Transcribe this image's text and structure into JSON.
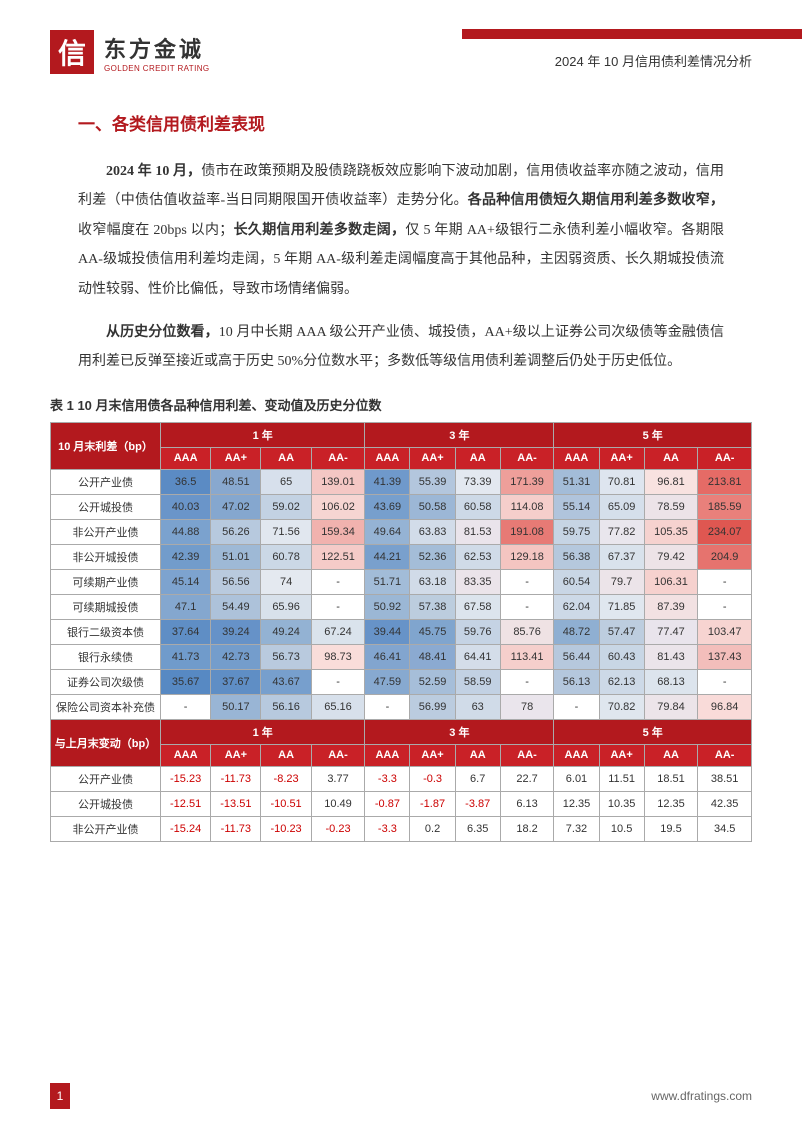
{
  "header": {
    "logo_char": "信",
    "logo_cn": "东方金诚",
    "logo_en": "GOLDEN CREDIT RATING",
    "doc_title": "2024 年 10 月信用债利差情况分析"
  },
  "section_title": "一、各类信用债利差表现",
  "p1_a": "2024 年 10 月，",
  "p1_b": "债市在政策预期及股债跷跷板效应影响下波动加剧，信用债收益率亦随之波动，信用利差（中债估值收益率-当日同期限国开债收益率）走势分化。",
  "p1_c": "各品种信用债短久期信用利差多数收窄，",
  "p1_d": "收窄幅度在 20bps 以内；",
  "p1_e": "长久期信用利差多数走阔，",
  "p1_f": "仅 5 年期 AA+级银行二永债利差小幅收窄。各期限 AA-级城投债信用利差均走阔，5 年期 AA-级利差走阔幅度高于其他品种，主因弱资质、长久期城投债流动性较弱、性价比偏低，导致市场情绪偏弱。",
  "p2_a": "从历史分位数看，",
  "p2_b": "10 月中长期 AAA 级公开产业债、城投债，AA+级以上证券公司次级债等金融债信用利差已反弹至接近或高于历史 50%分位数水平；多数低等级信用债利差调整后仍处于历史低位。",
  "table1": {
    "caption": "表 1 10 月末信用债各品种信用利差、变动值及历史分位数",
    "corner1": "10 月末利差（bp）",
    "corner2": "与上月末变动（bp）",
    "years": [
      "1 年",
      "3 年",
      "5 年"
    ],
    "ratings": [
      "AAA",
      "AA+",
      "AA",
      "AA-"
    ],
    "rowsA": [
      {
        "label": "公开产业债",
        "cells": [
          {
            "v": "36.5",
            "c": "#5b8bc4"
          },
          {
            "v": "48.51",
            "c": "#88a8cf"
          },
          {
            "v": "65",
            "c": "#d7e0ec"
          },
          {
            "v": "139.01",
            "c": "#f4c7c4"
          },
          {
            "v": "41.39",
            "c": "#6f99cb"
          },
          {
            "v": "55.39",
            "c": "#b3c6dd"
          },
          {
            "v": "73.39",
            "c": "#e3e8f0"
          },
          {
            "v": "171.39",
            "c": "#ee9f9a"
          },
          {
            "v": "51.31",
            "c": "#a3bcd8"
          },
          {
            "v": "70.81",
            "c": "#dee5ef"
          },
          {
            "v": "96.81",
            "c": "#f8e2e0"
          },
          {
            "v": "213.81",
            "c": "#e56b66"
          }
        ]
      },
      {
        "label": "公开城投债",
        "cells": [
          {
            "v": "40.03",
            "c": "#6a95c9"
          },
          {
            "v": "47.02",
            "c": "#85a7cf"
          },
          {
            "v": "59.02",
            "c": "#c3d2e3"
          },
          {
            "v": "106.02",
            "c": "#f6d5d2"
          },
          {
            "v": "43.69",
            "c": "#779fcd"
          },
          {
            "v": "50.58",
            "c": "#9cb7d6"
          },
          {
            "v": "60.58",
            "c": "#cdd9e7"
          },
          {
            "v": "114.08",
            "c": "#f5cecb"
          },
          {
            "v": "55.14",
            "c": "#b0c4dc"
          },
          {
            "v": "65.09",
            "c": "#d5dfeb"
          },
          {
            "v": "78.59",
            "c": "#ece3e8"
          },
          {
            "v": "185.59",
            "c": "#e9807b"
          }
        ]
      },
      {
        "label": "非公开产业债",
        "cells": [
          {
            "v": "44.88",
            "c": "#7ba2ce"
          },
          {
            "v": "56.26",
            "c": "#b7c9de"
          },
          {
            "v": "71.56",
            "c": "#e1e7ef"
          },
          {
            "v": "159.34",
            "c": "#f1b2ae"
          },
          {
            "v": "49.64",
            "c": "#95b3d4"
          },
          {
            "v": "63.83",
            "c": "#d2dce9"
          },
          {
            "v": "81.53",
            "c": "#eae4eb"
          },
          {
            "v": "191.08",
            "c": "#e77a75"
          },
          {
            "v": "59.75",
            "c": "#c6d4e4"
          },
          {
            "v": "77.82",
            "c": "#e9e6ed"
          },
          {
            "v": "105.35",
            "c": "#f6d2cf"
          },
          {
            "v": "234.07",
            "c": "#df5751"
          }
        ]
      },
      {
        "label": "非公开城投债",
        "cells": [
          {
            "v": "42.39",
            "c": "#729ccb"
          },
          {
            "v": "51.01",
            "c": "#9eb9d6"
          },
          {
            "v": "60.78",
            "c": "#cbd8e6"
          },
          {
            "v": "122.51",
            "c": "#f5cbc8"
          },
          {
            "v": "44.21",
            "c": "#79a0cd"
          },
          {
            "v": "52.36",
            "c": "#a4bdd8"
          },
          {
            "v": "62.53",
            "c": "#d0dbe8"
          },
          {
            "v": "129.18",
            "c": "#f4c5c1"
          },
          {
            "v": "56.38",
            "c": "#b5c8dd"
          },
          {
            "v": "67.37",
            "c": "#d9e2ec"
          },
          {
            "v": "79.42",
            "c": "#ede3e7"
          },
          {
            "v": "204.9",
            "c": "#e6736e"
          }
        ]
      },
      {
        "label": "可续期产业债",
        "cells": [
          {
            "v": "45.14",
            "c": "#7da3cf"
          },
          {
            "v": "56.56",
            "c": "#b9cade"
          },
          {
            "v": "74",
            "c": "#e4e9f0"
          },
          {
            "v": "-",
            "c": "#fff"
          },
          {
            "v": "51.71",
            "c": "#a2bcd8"
          },
          {
            "v": "63.18",
            "c": "#d1dbe8"
          },
          {
            "v": "83.35",
            "c": "#ebe4ea"
          },
          {
            "v": "-",
            "c": "#fff"
          },
          {
            "v": "60.54",
            "c": "#c9d6e5"
          },
          {
            "v": "79.7",
            "c": "#ece4e9"
          },
          {
            "v": "106.31",
            "c": "#f6d1ce"
          },
          {
            "v": "-",
            "c": "#fff"
          }
        ]
      },
      {
        "label": "可续期城投债",
        "cells": [
          {
            "v": "47.1",
            "c": "#84a7cf"
          },
          {
            "v": "54.49",
            "c": "#adc2da"
          },
          {
            "v": "65.96",
            "c": "#d8e1eb"
          },
          {
            "v": "-",
            "c": "#fff"
          },
          {
            "v": "50.92",
            "c": "#9bb7d5"
          },
          {
            "v": "57.38",
            "c": "#bccdde"
          },
          {
            "v": "67.58",
            "c": "#dce4ed"
          },
          {
            "v": "-",
            "c": "#fff"
          },
          {
            "v": "62.04",
            "c": "#cdd9e7"
          },
          {
            "v": "71.85",
            "c": "#e0e7ef"
          },
          {
            "v": "87.39",
            "c": "#f2e1e2"
          },
          {
            "v": "-",
            "c": "#fff"
          }
        ]
      },
      {
        "label": "银行二级资本债",
        "cells": [
          {
            "v": "37.64",
            "c": "#5f8ec5"
          },
          {
            "v": "39.24",
            "c": "#6692c8"
          },
          {
            "v": "49.24",
            "c": "#93b2d3"
          },
          {
            "v": "67.24",
            "c": "#dae3ec"
          },
          {
            "v": "39.44",
            "c": "#6793c8"
          },
          {
            "v": "45.75",
            "c": "#80a5ce"
          },
          {
            "v": "59.76",
            "c": "#c5d3e4"
          },
          {
            "v": "85.76",
            "c": "#efe2e4"
          },
          {
            "v": "48.72",
            "c": "#8fafd2"
          },
          {
            "v": "57.47",
            "c": "#bdcddf"
          },
          {
            "v": "77.47",
            "c": "#e9e4ec"
          },
          {
            "v": "103.47",
            "c": "#f7d4d1"
          }
        ]
      },
      {
        "label": "银行永续债",
        "cells": [
          {
            "v": "41.73",
            "c": "#709bcb"
          },
          {
            "v": "42.73",
            "c": "#749dcc"
          },
          {
            "v": "56.73",
            "c": "#b9cade"
          },
          {
            "v": "98.73",
            "c": "#f9ddda"
          },
          {
            "v": "46.41",
            "c": "#82a5cf"
          },
          {
            "v": "48.41",
            "c": "#8baad1"
          },
          {
            "v": "64.41",
            "c": "#d4dde9"
          },
          {
            "v": "113.41",
            "c": "#f5cfcc"
          },
          {
            "v": "56.44",
            "c": "#b6c8dd"
          },
          {
            "v": "60.43",
            "c": "#c8d6e5"
          },
          {
            "v": "81.43",
            "c": "#ebe4ea"
          },
          {
            "v": "137.43",
            "c": "#f3bebb"
          }
        ]
      },
      {
        "label": "证券公司次级债",
        "cells": [
          {
            "v": "35.67",
            "c": "#5789c3"
          },
          {
            "v": "37.67",
            "c": "#5f8ec5"
          },
          {
            "v": "43.67",
            "c": "#779fcd"
          },
          {
            "v": "-",
            "c": "#fff"
          },
          {
            "v": "47.59",
            "c": "#87a9d0"
          },
          {
            "v": "52.59",
            "c": "#a6bed9"
          },
          {
            "v": "58.59",
            "c": "#c2d1e3"
          },
          {
            "v": "-",
            "c": "#fff"
          },
          {
            "v": "56.13",
            "c": "#b4c7dd"
          },
          {
            "v": "62.13",
            "c": "#cdd9e7"
          },
          {
            "v": "68.13",
            "c": "#dce4ed"
          },
          {
            "v": "-",
            "c": "#fff"
          }
        ]
      },
      {
        "label": "保险公司资本补充债",
        "cells": [
          {
            "v": "-",
            "c": "#fff"
          },
          {
            "v": "50.17",
            "c": "#99b5d5"
          },
          {
            "v": "56.16",
            "c": "#b7c9de"
          },
          {
            "v": "65.16",
            "c": "#d7e0eb"
          },
          {
            "v": "-",
            "c": "#fff"
          },
          {
            "v": "56.99",
            "c": "#bbccdf"
          },
          {
            "v": "63",
            "c": "#d0dbe8"
          },
          {
            "v": "78",
            "c": "#eae5ec"
          },
          {
            "v": "-",
            "c": "#fff"
          },
          {
            "v": "70.82",
            "c": "#dfe6ee"
          },
          {
            "v": "79.84",
            "c": "#ece4e9"
          },
          {
            "v": "96.84",
            "c": "#f9dbd9"
          }
        ]
      }
    ],
    "rowsB": [
      {
        "label": "公开产业债",
        "cells": [
          "-15.23",
          "-11.73",
          "-8.23",
          "3.77",
          "-3.3",
          "-0.3",
          "6.7",
          "22.7",
          "6.01",
          "11.51",
          "18.51",
          "38.51"
        ]
      },
      {
        "label": "公开城投债",
        "cells": [
          "-12.51",
          "-13.51",
          "-10.51",
          "10.49",
          "-0.87",
          "-1.87",
          "-3.87",
          "6.13",
          "12.35",
          "10.35",
          "12.35",
          "42.35"
        ]
      },
      {
        "label": "非公开产业债",
        "cells": [
          "-15.24",
          "-11.73",
          "-10.23",
          "-0.23",
          "-3.3",
          "0.2",
          "6.35",
          "18.2",
          "7.32",
          "10.5",
          "19.5",
          "34.5"
        ]
      }
    ]
  },
  "footer": {
    "page": "1",
    "url": "www.dfratings.com"
  }
}
